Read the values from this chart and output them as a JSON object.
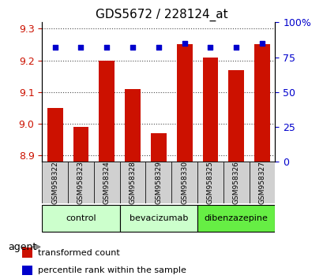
{
  "title": "GDS5672 / 228124_at",
  "samples": [
    "GSM958322",
    "GSM958323",
    "GSM958324",
    "GSM958328",
    "GSM958329",
    "GSM958330",
    "GSM958325",
    "GSM958326",
    "GSM958327"
  ],
  "transformed_counts": [
    9.05,
    8.99,
    9.2,
    9.11,
    8.97,
    9.25,
    9.21,
    9.17,
    9.25
  ],
  "percentile_ranks": [
    82,
    82,
    82,
    82,
    82,
    85,
    82,
    82,
    85
  ],
  "ylim_left": [
    8.88,
    9.32
  ],
  "ylim_right": [
    0,
    100
  ],
  "yticks_left": [
    8.9,
    9.0,
    9.1,
    9.2,
    9.3
  ],
  "yticks_right": [
    0,
    25,
    50,
    75,
    100
  ],
  "ytick_right_labels": [
    "0",
    "25",
    "50",
    "75",
    "100%"
  ],
  "bar_color": "#cc1100",
  "dot_color": "#0000cc",
  "bar_bottom": 8.88,
  "label_transformed": "transformed count",
  "label_percentile": "percentile rank within the sample",
  "agent_label": "agent",
  "group_names": [
    "control",
    "bevacizumab",
    "dibenzazepine"
  ],
  "group_colors": [
    "#ccffcc",
    "#ccffcc",
    "#66ee44"
  ],
  "group_ranges": [
    [
      0,
      3
    ],
    [
      3,
      6
    ],
    [
      6,
      9
    ]
  ]
}
